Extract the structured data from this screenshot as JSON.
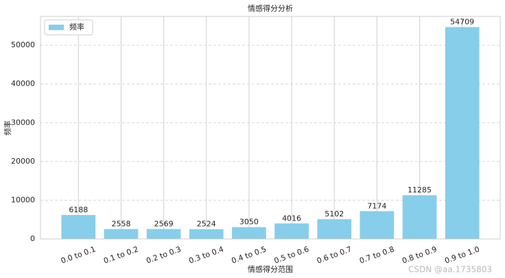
{
  "chart_data": {
    "type": "bar",
    "title": "情感得分分析",
    "x_label": "情感得分范围",
    "y_label": "频率",
    "categories": [
      "0.0 to 0.1",
      "0.1 to 0.2",
      "0.2 to 0.3",
      "0.3 to 0.4",
      "0.4 to 0.5",
      "0.5 to 0.6",
      "0.6 to 0.7",
      "0.7 to 0.8",
      "0.8 to 0.9",
      "0.9 to 1.0"
    ],
    "series": [
      {
        "name": "频率",
        "color": "#87ceeb",
        "values": [
          6188,
          2558,
          2569,
          2524,
          3050,
          4016,
          5102,
          7174,
          11285,
          54709
        ]
      }
    ],
    "ylim": [
      0,
      57444
    ],
    "yticks": [
      0,
      10000,
      20000,
      30000,
      40000,
      50000
    ],
    "grid": true,
    "legend": "upper left",
    "watermark": "CSDN @aa.1735803"
  }
}
